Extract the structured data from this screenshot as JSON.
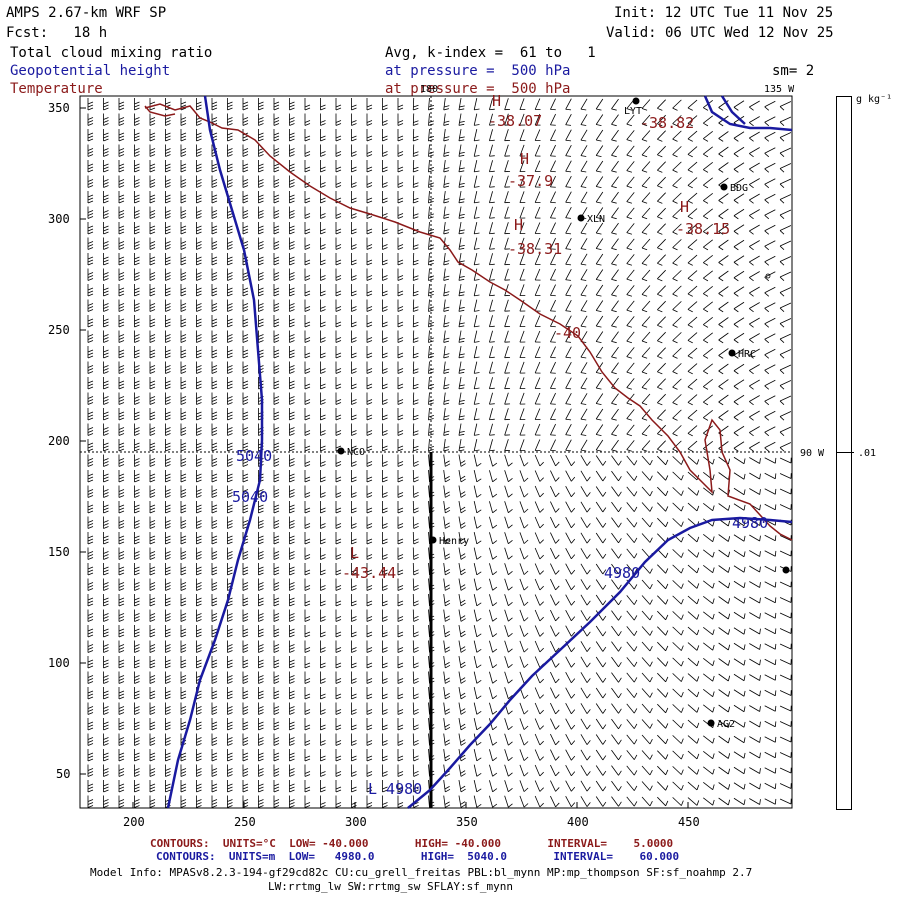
{
  "header": {
    "model": "AMPS 2.67-km WRF SP",
    "init": "Init: 12 UTC Tue 11 Nov 25",
    "fcst": "Fcst:   18 h",
    "valid": "Valid: 06 UTC Wed 12 Nov 25",
    "field1": "Total cloud mixing ratio",
    "field1_info": "Avg, k-index =  61 to   1",
    "field2": "Geopotential height",
    "field2_info": "at pressure =  500 hPa",
    "sm": "sm= 2",
    "field3": "Temperature",
    "field3_info": "at pressure =  500 hPa"
  },
  "colors": {
    "temperature": "#8b1a1a",
    "height": "#1a1aa0",
    "text": "#000000"
  },
  "map": {
    "x_ticks": [
      "200",
      "250",
      "300",
      "350",
      "400",
      "450"
    ],
    "y_ticks": [
      "50",
      "100",
      "150",
      "200",
      "250",
      "300",
      "350"
    ],
    "meridian_labels": {
      "top": "180",
      "top_right": "135 W",
      "right": "90 W"
    },
    "stations": [
      {
        "name": "LYT"
      },
      {
        "name": "BDG"
      },
      {
        "name": "XLN"
      },
      {
        "name": "HRC"
      },
      {
        "name": "NCO"
      },
      {
        "name": "Henry"
      },
      {
        "name": "AG2"
      }
    ],
    "temp_labels": [
      "H",
      "-38.07",
      "-38.82",
      "H",
      "-37.9",
      "H",
      "-38.31",
      "H",
      "-38.15",
      "-40",
      "L",
      "-43.44"
    ],
    "height_labels": [
      "5040",
      "5040",
      "4980",
      "4980",
      "L 4980"
    ]
  },
  "colorbar": {
    "unit": "g kg⁻¹",
    "value": ".01"
  },
  "footer": {
    "contours_temp": "CONTOURS:  UNITS=°C  LOW= -40.000       HIGH= -40.000       INTERVAL=    5.0000",
    "contours_height": "CONTOURS:  UNITS=m  LOW=   4980.0       HIGH=  5040.0       INTERVAL=    60.000",
    "model_info": "Model Info: MPASv8.2.3-194-gf29cd82c CU:cu_grell_freitas PBL:bl_mynn MP:mp_thompson SF:sf_noahmp 2.7",
    "model_info2": "LW:rrtmg_lw SW:rrtmg_sw SFLAY:sf_mynn"
  }
}
